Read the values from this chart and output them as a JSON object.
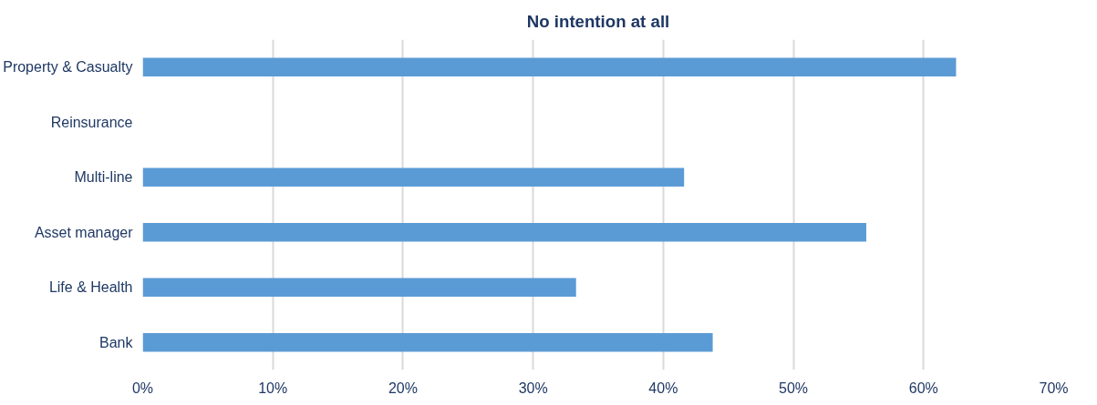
{
  "chart_data": {
    "type": "bar",
    "orientation": "horizontal",
    "title": "No intention at all",
    "categories": [
      "Property & Casualty",
      "Reinsurance",
      "Multi-line",
      "Asset manager",
      "Life & Health",
      "Bank"
    ],
    "values": [
      62.5,
      0,
      41.6,
      55.6,
      33.3,
      43.8
    ],
    "color": "#5b9bd5",
    "xlim": [
      0,
      70
    ],
    "xticks": [
      {
        "value": 0,
        "label": "0%"
      },
      {
        "value": 10,
        "label": "10%"
      },
      {
        "value": 20,
        "label": "20%"
      },
      {
        "value": 30,
        "label": "30%"
      },
      {
        "value": 40,
        "label": "40%"
      },
      {
        "value": 50,
        "label": "50%"
      },
      {
        "value": 60,
        "label": "60%"
      },
      {
        "value": 70,
        "label": "70%"
      }
    ],
    "grid": "x"
  }
}
